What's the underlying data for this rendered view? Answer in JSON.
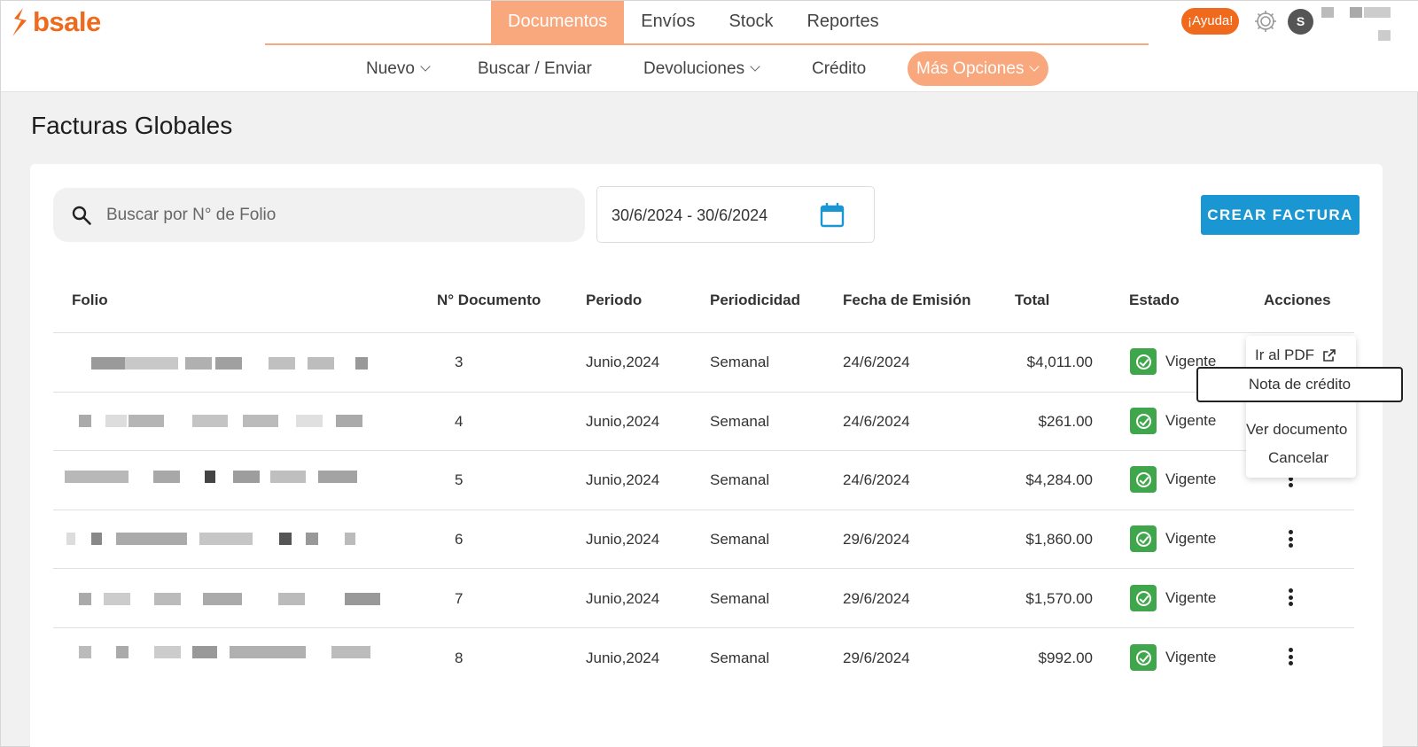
{
  "brand": {
    "name": "bsale",
    "color": "#f06a1d"
  },
  "topnav": {
    "items": [
      {
        "label": "Documentos",
        "active": true
      },
      {
        "label": "Envíos",
        "active": false
      },
      {
        "label": "Stock",
        "active": false
      },
      {
        "label": "Reportes",
        "active": false
      }
    ],
    "help_label": "¡Ayuda!",
    "avatar_initial": "S"
  },
  "subnav": {
    "items": [
      {
        "label": "Nuevo",
        "has_chevron": true
      },
      {
        "label": "Buscar / Enviar",
        "has_chevron": false
      },
      {
        "label": "Devoluciones",
        "has_chevron": true
      },
      {
        "label": "Crédito",
        "has_chevron": false
      },
      {
        "label": "Más Opciones",
        "has_chevron": true,
        "active": true
      }
    ]
  },
  "page": {
    "title": "Facturas Globales"
  },
  "search": {
    "placeholder": "Buscar por N° de Folio",
    "value": ""
  },
  "date_range": {
    "value": "30/6/2024 - 30/6/2024"
  },
  "create_button": {
    "label": "CREAR FACTURA"
  },
  "table": {
    "headers": {
      "folio": "Folio",
      "doc_num": "N° Documento",
      "periodo": "Periodo",
      "periodicidad": "Periodicidad",
      "fecha": "Fecha de Emisión",
      "total": "Total",
      "estado": "Estado",
      "acciones": "Acciones"
    },
    "rows": [
      {
        "doc_num": "3",
        "periodo": "Junio,2024",
        "periodicidad": "Semanal",
        "fecha": "24/6/2024",
        "total": "$4,011.00",
        "estado": "Vigente"
      },
      {
        "doc_num": "4",
        "periodo": "Junio,2024",
        "periodicidad": "Semanal",
        "fecha": "24/6/2024",
        "total": "$261.00",
        "estado": "Vigente"
      },
      {
        "doc_num": "5",
        "periodo": "Junio,2024",
        "periodicidad": "Semanal",
        "fecha": "24/6/2024",
        "total": "$4,284.00",
        "estado": "Vigente"
      },
      {
        "doc_num": "6",
        "periodo": "Junio,2024",
        "periodicidad": "Semanal",
        "fecha": "29/6/2024",
        "total": "$1,860.00",
        "estado": "Vigente"
      },
      {
        "doc_num": "7",
        "periodo": "Junio,2024",
        "periodicidad": "Semanal",
        "fecha": "29/6/2024",
        "total": "$1,570.00",
        "estado": "Vigente"
      },
      {
        "doc_num": "8",
        "periodo": "Junio,2024",
        "periodicidad": "Semanal",
        "fecha": "29/6/2024",
        "total": "$992.00",
        "estado": "Vigente"
      }
    ]
  },
  "actions_menu": {
    "items": [
      {
        "label": "Ir al PDF",
        "icon": "external-link-icon"
      },
      {
        "label": "Nota de crédito",
        "highlighted": true
      },
      {
        "label": "Ver documento"
      },
      {
        "label": "Cancelar"
      }
    ]
  },
  "colors": {
    "accent": "#f9a77d",
    "brand": "#f06a1d",
    "primary_button": "#1a96d2",
    "status_ok": "#3fa64b"
  }
}
